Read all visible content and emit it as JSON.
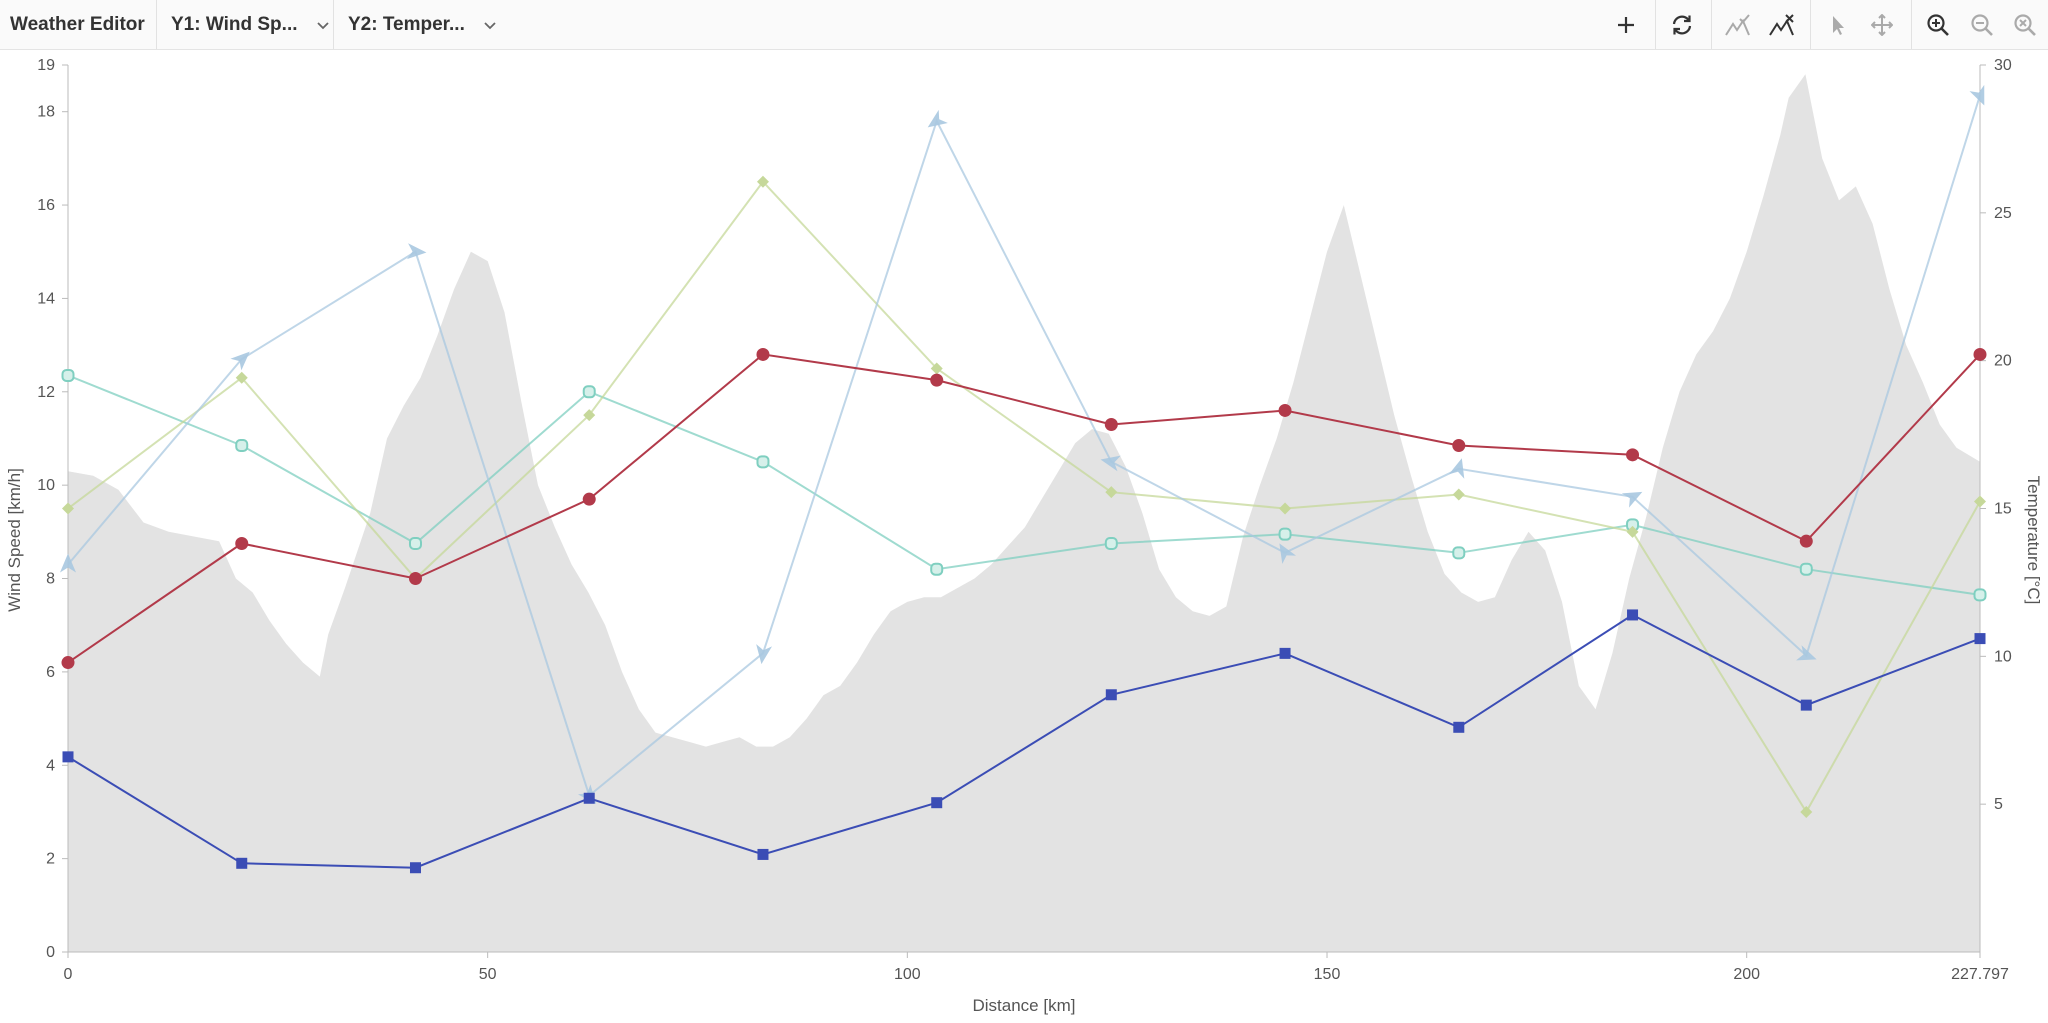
{
  "toolbar": {
    "title": "Weather Editor",
    "y1_label": "Y1: Wind Sp...",
    "y2_label": "Y2: Temper..."
  },
  "icons": {
    "add": "plus-icon",
    "refresh": "refresh-icon",
    "accept": "peaks-check-icon",
    "reject": "peaks-cross-icon",
    "select": "pointer-icon",
    "pan": "move-icon",
    "zoom_in": "zoom-in-icon",
    "zoom_out": "zoom-out-icon",
    "zoom_reset": "zoom-reset-icon"
  },
  "colors": {
    "wind_speed": "#b23a4a",
    "temperature": "#3b4db5",
    "series_teal": "#7fcfc0",
    "series_olive": "#c6d89a",
    "series_blue": "#a9c8e0",
    "elevation": "#e3e3e3"
  },
  "chart_data": {
    "type": "line",
    "xlabel": "Distance [km]",
    "ylabel": "Wind Speed [km/h]",
    "y2label": "Temperature [°C]",
    "xlim": [
      0,
      227.797
    ],
    "ylim": [
      0,
      19
    ],
    "y2lim": [
      0,
      30
    ],
    "x_ticks": [
      "0",
      "50",
      "100",
      "150",
      "200",
      "227.797"
    ],
    "y_ticks": [
      "0",
      "2",
      "4",
      "6",
      "8",
      "10",
      "12",
      "14",
      "16",
      "18",
      "19"
    ],
    "y2_ticks": [
      "5",
      "10",
      "15",
      "20",
      "25",
      "30"
    ],
    "x": [
      0,
      20.7,
      41.4,
      62.1,
      82.8,
      103.5,
      124.3,
      145.0,
      165.7,
      186.4,
      207.1,
      227.797
    ],
    "series": [
      {
        "axis": "y1",
        "marker": "circle",
        "color": "#b23a4a",
        "values": [
          6.2,
          8.75,
          8.0,
          9.7,
          12.8,
          12.25,
          11.3,
          11.6,
          10.85,
          10.65,
          8.8,
          12.8
        ]
      },
      {
        "axis": "y2",
        "marker": "square",
        "color": "#3b4db5",
        "values": [
          6.6,
          3.0,
          2.85,
          5.2,
          3.3,
          5.05,
          8.7,
          10.1,
          7.6,
          11.4,
          8.35,
          10.6
        ]
      },
      {
        "axis": "y1",
        "marker": "open-circle",
        "color": "#7fcfc0",
        "values": [
          12.35,
          10.85,
          8.75,
          12.0,
          10.5,
          8.2,
          8.75,
          8.95,
          8.55,
          9.15,
          8.2,
          7.65
        ]
      },
      {
        "axis": "y1",
        "marker": "diamond",
        "color": "#c6d89a",
        "values": [
          9.5,
          12.3,
          8.0,
          11.5,
          16.5,
          12.5,
          9.85,
          9.5,
          9.8,
          9.0,
          3.0,
          9.65
        ]
      },
      {
        "axis": "y1",
        "marker": "arrow",
        "color": "#a9c8e0",
        "values": [
          8.3,
          12.7,
          15.0,
          3.35,
          6.4,
          17.8,
          10.5,
          8.55,
          10.35,
          9.75,
          6.35,
          18.35
        ]
      }
    ],
    "elevation_profile": {
      "axis": "y1",
      "x": [
        0,
        3,
        6,
        9,
        12,
        15,
        18,
        20,
        22,
        24,
        26,
        28,
        30,
        31,
        33,
        36,
        38,
        40,
        42,
        44,
        46,
        48,
        50,
        52,
        54,
        56,
        58,
        60,
        62,
        64,
        66,
        68,
        70,
        72,
        74,
        76,
        78,
        80,
        82,
        84,
        86,
        88,
        90,
        92,
        94,
        96,
        98,
        100,
        102,
        104,
        106,
        108,
        110,
        112,
        114,
        116,
        118,
        120,
        122,
        124,
        126,
        128,
        130,
        132,
        134,
        136,
        138,
        140,
        142,
        144,
        146,
        148,
        150,
        152,
        154,
        156,
        158,
        160,
        162,
        164,
        166,
        168,
        170,
        172,
        174,
        176,
        178,
        180,
        182,
        184,
        186,
        188,
        190,
        192,
        194,
        196,
        198,
        200,
        202,
        204,
        205,
        207,
        209,
        211,
        213,
        215,
        217,
        219,
        221,
        223,
        225,
        227.797
      ],
      "values": [
        10.3,
        10.2,
        9.9,
        9.2,
        9.0,
        8.9,
        8.8,
        8.0,
        7.7,
        7.1,
        6.6,
        6.2,
        5.9,
        6.8,
        7.8,
        9.4,
        11.0,
        11.7,
        12.3,
        13.2,
        14.2,
        15.0,
        14.8,
        13.7,
        11.8,
        10.0,
        9.1,
        8.3,
        7.7,
        7.0,
        6.0,
        5.2,
        4.7,
        4.6,
        4.5,
        4.4,
        4.5,
        4.6,
        4.4,
        4.4,
        4.6,
        5.0,
        5.5,
        5.7,
        6.2,
        6.8,
        7.3,
        7.5,
        7.6,
        7.6,
        7.8,
        8.0,
        8.3,
        8.7,
        9.1,
        9.7,
        10.3,
        10.9,
        11.2,
        11.1,
        10.4,
        9.4,
        8.2,
        7.6,
        7.3,
        7.2,
        7.4,
        8.9,
        10.0,
        11.0,
        12.2,
        13.6,
        15.0,
        16.0,
        14.5,
        13.0,
        11.5,
        10.2,
        9.0,
        8.1,
        7.7,
        7.5,
        7.6,
        8.4,
        9.0,
        8.6,
        7.5,
        5.7,
        5.2,
        6.4,
        8.0,
        9.3,
        10.8,
        12.0,
        12.8,
        13.3,
        14.0,
        15.0,
        16.2,
        17.5,
        18.3,
        18.8,
        17.0,
        16.1,
        16.4,
        15.6,
        14.2,
        13.0,
        12.2,
        11.3,
        10.8,
        10.5
      ]
    }
  }
}
